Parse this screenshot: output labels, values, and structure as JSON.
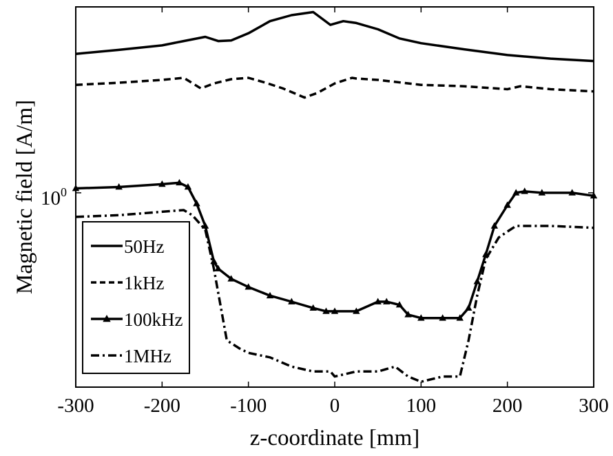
{
  "chart_data": {
    "type": "line",
    "xlabel": "z-coordinate [mm]",
    "ylabel": "Magnetic field [A/m]",
    "y_scale": "log",
    "ylim": [
      0.27,
      3.5
    ],
    "xlim": [
      -300,
      300
    ],
    "x_ticks": [
      -300,
      -200,
      -100,
      0,
      100,
      200,
      300
    ],
    "x_tick_labels": [
      "-300",
      "-200",
      "-100",
      "0",
      "100",
      "200",
      "300"
    ],
    "y_tick_base": "10",
    "y_tick_exponent": "0",
    "grid": false,
    "legend_position": "bottom-left",
    "series": [
      {
        "name": "50Hz",
        "style": "solid",
        "marker": "none",
        "color": "#000000",
        "x": [
          -300,
          -250,
          -200,
          -175,
          -150,
          -135,
          -120,
          -100,
          -75,
          -50,
          -25,
          -5,
          10,
          25,
          50,
          75,
          100,
          150,
          200,
          250,
          300
        ],
        "y": [
          2.55,
          2.62,
          2.7,
          2.78,
          2.86,
          2.78,
          2.79,
          2.93,
          3.18,
          3.31,
          3.38,
          3.1,
          3.18,
          3.14,
          3.01,
          2.83,
          2.74,
          2.63,
          2.53,
          2.47,
          2.43
        ]
      },
      {
        "name": "1kHz",
        "style": "dashed",
        "marker": "none",
        "color": "#000000",
        "x": [
          -300,
          -250,
          -200,
          -175,
          -155,
          -140,
          -120,
          -100,
          -80,
          -60,
          -35,
          -20,
          0,
          20,
          25,
          50,
          100,
          150,
          200,
          215,
          250,
          300
        ],
        "y": [
          2.07,
          2.1,
          2.14,
          2.17,
          2.02,
          2.09,
          2.15,
          2.17,
          2.1,
          2.02,
          1.9,
          1.96,
          2.09,
          2.17,
          2.16,
          2.14,
          2.07,
          2.05,
          2.01,
          2.05,
          2.01,
          1.98
        ]
      },
      {
        "name": "100kHz",
        "style": "solid",
        "marker": "triangle",
        "color": "#000000",
        "x": [
          -300,
          -250,
          -200,
          -180,
          -170,
          -160,
          -150,
          -140,
          -135,
          -120,
          -100,
          -75,
          -50,
          -25,
          -10,
          0,
          25,
          50,
          60,
          75,
          85,
          100,
          125,
          145,
          155,
          165,
          175,
          185,
          200,
          210,
          220,
          240,
          275,
          300
        ],
        "y": [
          1.03,
          1.04,
          1.06,
          1.07,
          1.04,
          0.93,
          0.8,
          0.63,
          0.6,
          0.56,
          0.53,
          0.5,
          0.48,
          0.46,
          0.45,
          0.45,
          0.45,
          0.48,
          0.48,
          0.47,
          0.44,
          0.43,
          0.43,
          0.43,
          0.46,
          0.55,
          0.66,
          0.8,
          0.92,
          1.0,
          1.01,
          1.0,
          1.0,
          0.98
        ]
      },
      {
        "name": "1MHz",
        "style": "dashdot",
        "marker": "none",
        "color": "#000000",
        "x": [
          -300,
          -250,
          -200,
          -175,
          -165,
          -150,
          -140,
          -125,
          -110,
          -100,
          -75,
          -50,
          -25,
          -5,
          0,
          25,
          50,
          70,
          85,
          100,
          125,
          145,
          155,
          165,
          175,
          190,
          200,
          210,
          250,
          300
        ],
        "y": [
          0.85,
          0.86,
          0.88,
          0.89,
          0.86,
          0.78,
          0.6,
          0.37,
          0.35,
          0.34,
          0.33,
          0.31,
          0.3,
          0.3,
          0.29,
          0.3,
          0.3,
          0.31,
          0.29,
          0.28,
          0.29,
          0.29,
          0.37,
          0.5,
          0.64,
          0.74,
          0.77,
          0.8,
          0.8,
          0.79
        ]
      }
    ]
  }
}
